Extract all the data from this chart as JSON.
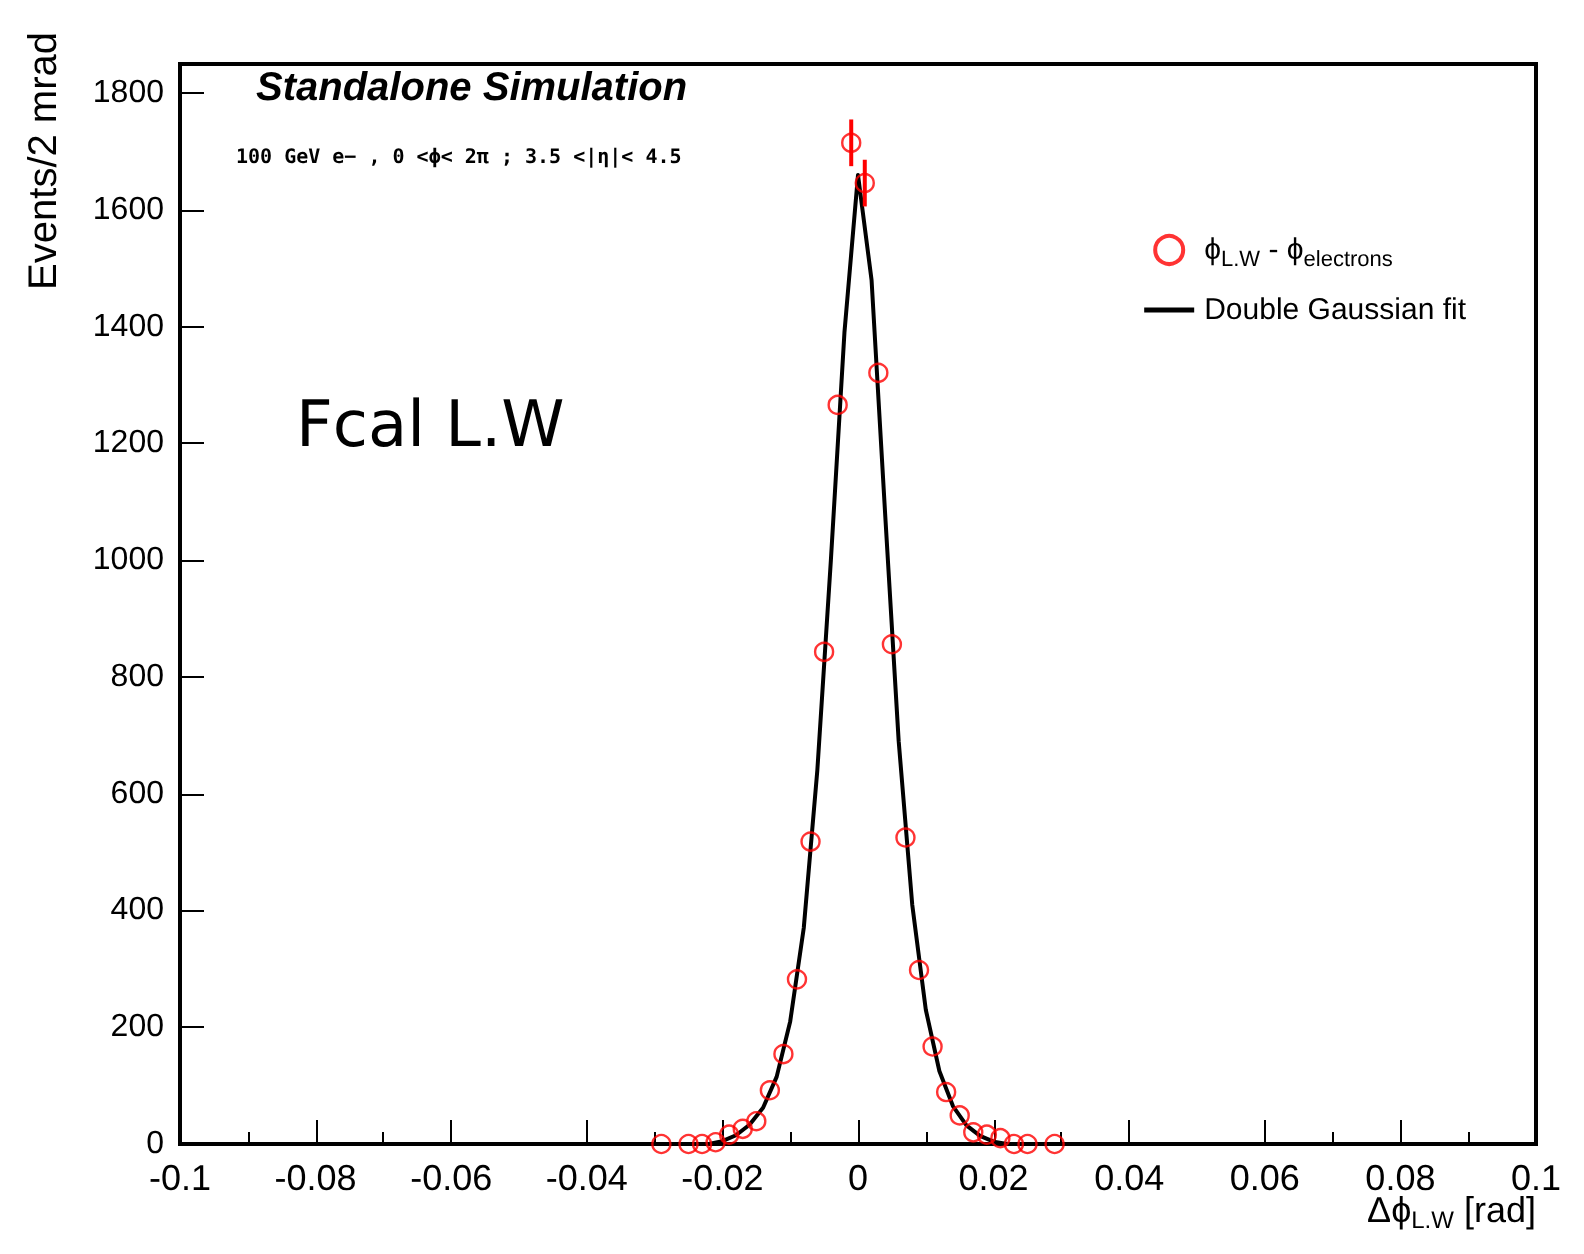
{
  "chart_data": {
    "type": "scatter",
    "xlabel": "Δϕ$_{L.W}$ [rad]",
    "ylabel": "Events/2 mrad",
    "annotations": [
      "Standalone Simulation",
      "100 GeV e− , 0 <ϕ< 2π ; 3.5 <|η|< 4.5",
      "Fcal L.W"
    ],
    "xlim": [
      -0.1,
      0.1
    ],
    "xticks": [
      -0.1,
      -0.08,
      -0.06,
      -0.04,
      -0.02,
      0,
      0.02,
      0.04,
      0.06,
      0.08,
      0.1
    ],
    "ylim": [
      0,
      1850
    ],
    "yticks": [
      0,
      200,
      400,
      600,
      800,
      1000,
      1200,
      1400,
      1600,
      1800
    ],
    "grid": false,
    "legend": "top right",
    "series": [
      {
        "name": "ϕ$_{L.W}$ - ϕ$_{electrons}$",
        "marker": "circle",
        "color": "#ff0000",
        "x": [
          -0.029,
          -0.025,
          -0.023,
          -0.021,
          -0.019,
          -0.017,
          -0.015,
          -0.013,
          -0.011,
          -0.009,
          -0.007,
          -0.005,
          -0.003,
          -0.001,
          0.001,
          0.003,
          0.005,
          0.007,
          0.009,
          0.011,
          0.013,
          0.015,
          0.017,
          0.019,
          0.021,
          0.023,
          0.025,
          0.029
        ],
        "values": [
          0,
          0,
          0,
          3,
          16,
          26,
          39,
          92,
          154,
          282,
          518,
          843,
          1266,
          1715,
          1646,
          1321,
          856,
          525,
          298,
          167,
          89,
          49,
          20,
          16,
          10,
          0,
          0,
          0
        ],
        "errors": [
          null,
          null,
          null,
          null,
          null,
          null,
          null,
          null,
          null,
          null,
          null,
          null,
          null,
          40,
          40,
          null,
          null,
          null,
          null,
          null,
          null,
          null,
          null,
          null,
          null,
          null,
          null,
          null
        ]
      },
      {
        "name": "Double Gaussian fit",
        "type": "line",
        "marker": "none",
        "color": "#000000",
        "x": [
          -0.022,
          -0.02,
          -0.018,
          -0.016,
          -0.014,
          -0.012,
          -0.01,
          -0.008,
          -0.006,
          -0.004,
          -0.002,
          0,
          0.002,
          0.004,
          0.006,
          0.008,
          0.01,
          0.012,
          0.014,
          0.016,
          0.018,
          0.02,
          0.022
        ],
        "values": [
          0,
          5,
          15,
          33,
          62,
          115,
          210,
          370,
          640,
          1000,
          1390,
          1660,
          1480,
          1080,
          690,
          410,
          230,
          125,
          65,
          32,
          14,
          4,
          0
        ]
      }
    ]
  }
}
